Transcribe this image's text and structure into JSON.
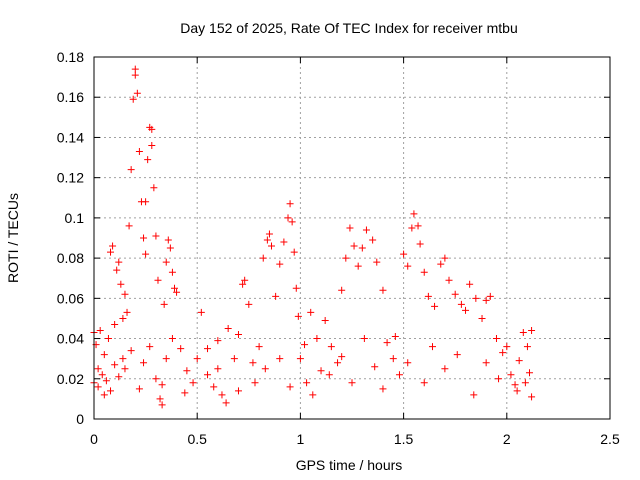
{
  "chart_data": {
    "type": "scatter",
    "title": "Day 152 of 2025, Rate Of TEC Index for receiver mtbu",
    "xlabel": "GPS time / hours",
    "ylabel": "ROTI / TECUs",
    "xlim": [
      0,
      2.5
    ],
    "ylim": [
      0,
      0.18
    ],
    "xticks": [
      0,
      0.5,
      1,
      1.5,
      2,
      2.5
    ],
    "xtick_labels": [
      "0",
      "0.5",
      "1",
      "1.5",
      "2",
      "2.5"
    ],
    "yticks": [
      0,
      0.02,
      0.04,
      0.06,
      0.08,
      0.1,
      0.12,
      0.14,
      0.16,
      0.18
    ],
    "ytick_labels": [
      "0",
      "0.02",
      "0.04",
      "0.06",
      "0.08",
      "0.1",
      "0.12",
      "0.14",
      "0.16",
      "0.18"
    ],
    "grid": true,
    "marker": "+",
    "marker_color": "#ff0000",
    "series": [
      {
        "name": "mtbu",
        "points": [
          [
            0.0,
            0.018
          ],
          [
            0.0,
            0.043
          ],
          [
            0.01,
            0.037
          ],
          [
            0.02,
            0.025
          ],
          [
            0.02,
            0.016
          ],
          [
            0.03,
            0.044
          ],
          [
            0.04,
            0.022
          ],
          [
            0.05,
            0.032
          ],
          [
            0.06,
            0.019
          ],
          [
            0.07,
            0.04
          ],
          [
            0.08,
            0.014
          ],
          [
            0.08,
            0.083
          ],
          [
            0.09,
            0.086
          ],
          [
            0.1,
            0.027
          ],
          [
            0.1,
            0.047
          ],
          [
            0.11,
            0.074
          ],
          [
            0.12,
            0.078
          ],
          [
            0.13,
            0.067
          ],
          [
            0.14,
            0.03
          ],
          [
            0.14,
            0.05
          ],
          [
            0.15,
            0.062
          ],
          [
            0.16,
            0.053
          ],
          [
            0.17,
            0.096
          ],
          [
            0.18,
            0.124
          ],
          [
            0.19,
            0.159
          ],
          [
            0.2,
            0.171
          ],
          [
            0.2,
            0.174
          ],
          [
            0.21,
            0.162
          ],
          [
            0.22,
            0.133
          ],
          [
            0.23,
            0.108
          ],
          [
            0.24,
            0.09
          ],
          [
            0.25,
            0.108
          ],
          [
            0.25,
            0.082
          ],
          [
            0.26,
            0.129
          ],
          [
            0.27,
            0.145
          ],
          [
            0.28,
            0.144
          ],
          [
            0.28,
            0.136
          ],
          [
            0.29,
            0.115
          ],
          [
            0.3,
            0.091
          ],
          [
            0.31,
            0.069
          ],
          [
            0.32,
            0.01
          ],
          [
            0.33,
            0.007
          ],
          [
            0.34,
            0.057
          ],
          [
            0.35,
            0.078
          ],
          [
            0.36,
            0.089
          ],
          [
            0.37,
            0.085
          ],
          [
            0.38,
            0.073
          ],
          [
            0.39,
            0.065
          ],
          [
            0.4,
            0.063
          ],
          [
            0.15,
            0.025
          ],
          [
            0.22,
            0.015
          ],
          [
            0.27,
            0.036
          ],
          [
            0.3,
            0.02
          ],
          [
            0.35,
            0.03
          ],
          [
            0.42,
            0.035
          ],
          [
            0.45,
            0.024
          ],
          [
            0.48,
            0.018
          ],
          [
            0.5,
            0.03
          ],
          [
            0.52,
            0.053
          ],
          [
            0.55,
            0.022
          ],
          [
            0.58,
            0.016
          ],
          [
            0.6,
            0.039
          ],
          [
            0.62,
            0.012
          ],
          [
            0.65,
            0.045
          ],
          [
            0.68,
            0.03
          ],
          [
            0.7,
            0.014
          ],
          [
            0.72,
            0.067
          ],
          [
            0.73,
            0.069
          ],
          [
            0.75,
            0.057
          ],
          [
            0.77,
            0.028
          ],
          [
            0.8,
            0.036
          ],
          [
            0.82,
            0.08
          ],
          [
            0.84,
            0.089
          ],
          [
            0.85,
            0.092
          ],
          [
            0.86,
            0.086
          ],
          [
            0.88,
            0.061
          ],
          [
            0.9,
            0.077
          ],
          [
            0.92,
            0.088
          ],
          [
            0.94,
            0.1
          ],
          [
            0.95,
            0.107
          ],
          [
            0.96,
            0.098
          ],
          [
            0.97,
            0.083
          ],
          [
            0.98,
            0.065
          ],
          [
            0.99,
            0.051
          ],
          [
            1.0,
            0.03
          ],
          [
            1.03,
            0.018
          ],
          [
            1.05,
            0.053
          ],
          [
            1.08,
            0.04
          ],
          [
            1.1,
            0.024
          ],
          [
            1.12,
            0.049
          ],
          [
            1.15,
            0.036
          ],
          [
            1.18,
            0.028
          ],
          [
            1.2,
            0.064
          ],
          [
            1.22,
            0.08
          ],
          [
            1.24,
            0.095
          ],
          [
            1.26,
            0.086
          ],
          [
            1.28,
            0.076
          ],
          [
            1.3,
            0.085
          ],
          [
            1.32,
            0.094
          ],
          [
            1.35,
            0.089
          ],
          [
            1.37,
            0.078
          ],
          [
            1.4,
            0.064
          ],
          [
            1.42,
            0.038
          ],
          [
            1.45,
            0.03
          ],
          [
            1.48,
            0.022
          ],
          [
            1.5,
            0.082
          ],
          [
            1.52,
            0.076
          ],
          [
            1.54,
            0.095
          ],
          [
            1.55,
            0.102
          ],
          [
            1.57,
            0.096
          ],
          [
            1.58,
            0.087
          ],
          [
            1.6,
            0.073
          ],
          [
            1.62,
            0.061
          ],
          [
            1.65,
            0.056
          ],
          [
            1.68,
            0.077
          ],
          [
            1.7,
            0.08
          ],
          [
            1.72,
            0.069
          ],
          [
            1.75,
            0.062
          ],
          [
            1.78,
            0.057
          ],
          [
            1.8,
            0.054
          ],
          [
            1.82,
            0.067
          ],
          [
            1.85,
            0.06
          ],
          [
            1.88,
            0.05
          ],
          [
            1.9,
            0.059
          ],
          [
            1.92,
            0.061
          ],
          [
            1.95,
            0.04
          ],
          [
            1.98,
            0.033
          ],
          [
            2.0,
            0.036
          ],
          [
            2.02,
            0.022
          ],
          [
            2.04,
            0.017
          ],
          [
            2.06,
            0.029
          ],
          [
            2.08,
            0.043
          ],
          [
            2.1,
            0.036
          ],
          [
            2.12,
            0.044
          ],
          [
            2.12,
            0.011
          ],
          [
            2.11,
            0.023
          ],
          [
            0.05,
            0.012
          ],
          [
            0.12,
            0.021
          ],
          [
            0.18,
            0.034
          ],
          [
            0.24,
            0.028
          ],
          [
            0.33,
            0.017
          ],
          [
            0.38,
            0.04
          ],
          [
            0.44,
            0.013
          ],
          [
            0.55,
            0.035
          ],
          [
            0.6,
            0.025
          ],
          [
            0.64,
            0.008
          ],
          [
            0.7,
            0.042
          ],
          [
            0.78,
            0.018
          ],
          [
            0.83,
            0.025
          ],
          [
            0.9,
            0.03
          ],
          [
            0.95,
            0.016
          ],
          [
            1.02,
            0.037
          ],
          [
            1.06,
            0.012
          ],
          [
            1.14,
            0.022
          ],
          [
            1.2,
            0.031
          ],
          [
            1.25,
            0.018
          ],
          [
            1.31,
            0.04
          ],
          [
            1.36,
            0.026
          ],
          [
            1.4,
            0.015
          ],
          [
            1.46,
            0.041
          ],
          [
            1.52,
            0.028
          ],
          [
            1.6,
            0.018
          ],
          [
            1.64,
            0.036
          ],
          [
            1.7,
            0.025
          ],
          [
            1.76,
            0.032
          ],
          [
            1.84,
            0.012
          ],
          [
            1.9,
            0.028
          ],
          [
            1.96,
            0.02
          ],
          [
            2.05,
            0.014
          ],
          [
            2.09,
            0.018
          ]
        ]
      }
    ]
  }
}
